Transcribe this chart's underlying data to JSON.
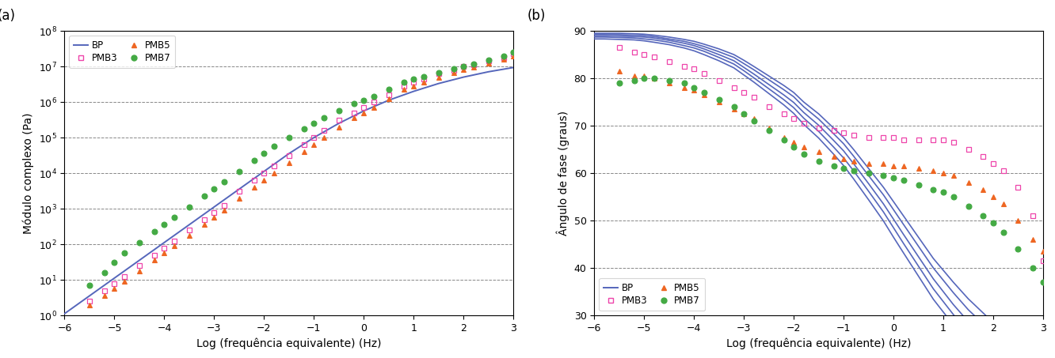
{
  "panel_a": {
    "xlabel": "Log (frequência equivalente) (Hz)",
    "ylabel": "Módulo complexo (Pa)",
    "xlim": [
      -6,
      3
    ],
    "ylim": [
      1.0,
      100000000.0
    ],
    "grid_y_exp": [
      1,
      2,
      3,
      4,
      5,
      6,
      7
    ],
    "bp_line": {
      "color": "#5566bb",
      "x": [
        -6.0,
        -5.5,
        -5.0,
        -4.5,
        -4.0,
        -3.5,
        -3.0,
        -2.5,
        -2.0,
        -1.5,
        -1.0,
        -0.5,
        0.0,
        0.5,
        1.0,
        1.5,
        2.0,
        2.5,
        3.0
      ],
      "y_exp": [
        0.05,
        0.55,
        1.05,
        1.55,
        2.05,
        2.55,
        3.05,
        3.55,
        4.05,
        4.55,
        5.0,
        5.4,
        5.75,
        6.05,
        6.3,
        6.52,
        6.7,
        6.85,
        6.97
      ]
    },
    "pmb3": {
      "color": "#ee44aa",
      "marker": "s",
      "filled": false,
      "x": [
        -5.5,
        -5.2,
        -5.0,
        -4.8,
        -4.5,
        -4.2,
        -4.0,
        -3.8,
        -3.5,
        -3.2,
        -3.0,
        -2.8,
        -2.5,
        -2.2,
        -2.0,
        -1.8,
        -1.5,
        -1.2,
        -1.0,
        -0.8,
        -0.5,
        -0.2,
        0.0,
        0.2,
        0.5,
        0.8,
        1.0,
        1.2,
        1.5,
        1.8,
        2.0,
        2.2,
        2.5,
        2.8,
        3.0
      ],
      "y_exp": [
        0.4,
        0.7,
        0.9,
        1.1,
        1.4,
        1.7,
        1.9,
        2.1,
        2.4,
        2.7,
        2.9,
        3.1,
        3.5,
        3.8,
        4.0,
        4.2,
        4.5,
        4.8,
        5.0,
        5.2,
        5.5,
        5.7,
        5.85,
        6.0,
        6.2,
        6.45,
        6.55,
        6.65,
        6.8,
        6.9,
        7.0,
        7.05,
        7.15,
        7.25,
        7.35
      ]
    },
    "pmb5": {
      "color": "#ee6622",
      "marker": "^",
      "filled": true,
      "x": [
        -5.5,
        -5.2,
        -5.0,
        -4.8,
        -4.5,
        -4.2,
        -4.0,
        -3.8,
        -3.5,
        -3.2,
        -3.0,
        -2.8,
        -2.5,
        -2.2,
        -2.0,
        -1.8,
        -1.5,
        -1.2,
        -1.0,
        -0.8,
        -0.5,
        -0.2,
        0.0,
        0.2,
        0.5,
        0.8,
        1.0,
        1.2,
        1.5,
        1.8,
        2.0,
        2.2,
        2.5,
        2.8,
        3.0
      ],
      "y_exp": [
        0.3,
        0.55,
        0.75,
        0.95,
        1.25,
        1.55,
        1.75,
        1.95,
        2.25,
        2.55,
        2.75,
        2.95,
        3.3,
        3.6,
        3.8,
        4.0,
        4.3,
        4.6,
        4.8,
        5.0,
        5.3,
        5.55,
        5.7,
        5.85,
        6.1,
        6.35,
        6.45,
        6.55,
        6.7,
        6.82,
        6.92,
        6.98,
        7.1,
        7.2,
        7.3
      ]
    },
    "pmb7": {
      "color": "#44aa44",
      "marker": "o",
      "filled": true,
      "x": [
        -5.5,
        -5.2,
        -5.0,
        -4.8,
        -4.5,
        -4.2,
        -4.0,
        -3.8,
        -3.5,
        -3.2,
        -3.0,
        -2.8,
        -2.5,
        -2.2,
        -2.0,
        -1.8,
        -1.5,
        -1.2,
        -1.0,
        -0.8,
        -0.5,
        -0.2,
        0.0,
        0.2,
        0.5,
        0.8,
        1.0,
        1.2,
        1.5,
        1.8,
        2.0,
        2.2,
        2.5,
        2.8,
        3.0
      ],
      "y_exp": [
        0.85,
        1.2,
        1.5,
        1.75,
        2.05,
        2.35,
        2.55,
        2.75,
        3.05,
        3.35,
        3.55,
        3.75,
        4.05,
        4.35,
        4.55,
        4.75,
        5.0,
        5.25,
        5.4,
        5.55,
        5.75,
        5.95,
        6.05,
        6.15,
        6.35,
        6.55,
        6.65,
        6.72,
        6.83,
        6.93,
        7.0,
        7.06,
        7.18,
        7.28,
        7.4
      ]
    }
  },
  "panel_b": {
    "xlabel": "Log (frequência equivalente) (Hz)",
    "ylabel": "Ângulo de fase (graus)",
    "xlim": [
      -6,
      3
    ],
    "ylim": [
      30,
      90
    ],
    "yticks": [
      30,
      40,
      50,
      60,
      70,
      80,
      90
    ],
    "grid_y": [
      40,
      50,
      60,
      70,
      80
    ],
    "bp_lines": {
      "color": "#5566bb",
      "x_sets": [
        [
          -6.0,
          -5.8,
          -5.5,
          -5.2,
          -5.0,
          -4.8,
          -4.5,
          -4.2,
          -4.0,
          -3.8,
          -3.5,
          -3.2,
          -3.0,
          -2.8,
          -2.5,
          -2.2,
          -2.0,
          -1.8,
          -1.5,
          -1.2,
          -1.0,
          -0.8,
          -0.5,
          -0.2,
          0.0,
          0.2,
          0.5,
          0.8,
          1.0,
          1.2,
          1.5,
          1.8,
          2.0,
          2.5,
          3.0
        ],
        [
          -6.0,
          -5.8,
          -5.5,
          -5.2,
          -5.0,
          -4.8,
          -4.5,
          -4.2,
          -4.0,
          -3.8,
          -3.5,
          -3.2,
          -3.0,
          -2.8,
          -2.5,
          -2.2,
          -2.0,
          -1.8,
          -1.5,
          -1.2,
          -1.0,
          -0.8,
          -0.5,
          -0.2,
          0.0,
          0.2,
          0.5,
          0.8,
          1.0,
          1.2,
          1.5,
          1.8,
          2.0,
          2.5,
          3.0
        ],
        [
          -6.0,
          -5.8,
          -5.5,
          -5.2,
          -5.0,
          -4.8,
          -4.5,
          -4.2,
          -4.0,
          -3.8,
          -3.5,
          -3.2,
          -3.0,
          -2.8,
          -2.5,
          -2.2,
          -2.0,
          -1.8,
          -1.5,
          -1.2,
          -1.0,
          -0.8,
          -0.5,
          -0.2,
          0.0,
          0.2,
          0.5,
          0.8,
          1.0,
          1.2,
          1.5,
          1.8,
          2.0,
          2.5,
          3.0
        ],
        [
          -6.0,
          -5.8,
          -5.5,
          -5.2,
          -5.0,
          -4.8,
          -4.5,
          -4.2,
          -4.0,
          -3.8,
          -3.5,
          -3.2,
          -3.0,
          -2.8,
          -2.5,
          -2.2,
          -2.0,
          -1.8,
          -1.5,
          -1.2,
          -1.0,
          -0.8,
          -0.5,
          -0.2,
          0.0,
          0.2,
          0.5,
          0.8,
          1.0,
          1.2,
          1.5,
          1.8,
          2.0,
          2.5,
          3.0
        ],
        [
          -6.0,
          -5.8,
          -5.5,
          -5.2,
          -5.0,
          -4.8,
          -4.5,
          -4.2,
          -4.0,
          -3.8,
          -3.5,
          -3.2,
          -3.0,
          -2.8,
          -2.5,
          -2.2,
          -2.0,
          -1.8,
          -1.5,
          -1.2,
          -1.0,
          -0.8,
          -0.5,
          -0.2,
          0.0,
          0.2,
          0.5,
          0.8,
          1.0,
          1.2,
          1.5,
          1.8
        ]
      ],
      "y_sets": [
        [
          89.5,
          89.5,
          89.5,
          89.4,
          89.3,
          89.1,
          88.7,
          88.2,
          87.8,
          87.2,
          86.2,
          85.0,
          83.8,
          82.5,
          80.5,
          78.5,
          77.0,
          75.0,
          72.5,
          69.5,
          67.5,
          65.0,
          61.0,
          57.0,
          54.0,
          51.0,
          46.5,
          42.0,
          39.5,
          37.0,
          33.5,
          30.5,
          28.5,
          24.5,
          20.5
        ],
        [
          89.3,
          89.3,
          89.2,
          89.1,
          89.0,
          88.8,
          88.3,
          87.8,
          87.3,
          86.7,
          85.6,
          84.4,
          83.1,
          81.8,
          79.7,
          77.6,
          76.1,
          74.0,
          71.4,
          68.3,
          66.2,
          63.6,
          59.5,
          55.4,
          52.3,
          49.2,
          44.6,
          40.0,
          37.4,
          34.8,
          31.2,
          28.2,
          26.1,
          22.0,
          18.0
        ],
        [
          89.0,
          89.0,
          88.9,
          88.8,
          88.7,
          88.5,
          88.0,
          87.4,
          86.9,
          86.2,
          85.0,
          83.7,
          82.3,
          80.9,
          78.7,
          76.5,
          74.9,
          72.8,
          70.1,
          66.9,
          64.7,
          62.0,
          57.8,
          53.5,
          50.3,
          47.1,
          42.4,
          37.7,
          35.0,
          32.3,
          28.7,
          25.6,
          23.5,
          19.3,
          15.2
        ],
        [
          88.7,
          88.7,
          88.6,
          88.5,
          88.3,
          88.1,
          87.6,
          86.9,
          86.4,
          85.7,
          84.4,
          83.0,
          81.6,
          80.1,
          77.8,
          75.5,
          73.8,
          71.6,
          68.8,
          65.5,
          63.2,
          60.5,
          56.2,
          51.8,
          48.5,
          45.2,
          40.4,
          35.6,
          32.9,
          30.2,
          26.5,
          23.3,
          21.2,
          17.0,
          12.8
        ],
        [
          88.3,
          88.3,
          88.2,
          88.1,
          87.9,
          87.6,
          87.1,
          86.4,
          85.8,
          85.0,
          83.7,
          82.2,
          80.7,
          79.2,
          76.8,
          74.4,
          72.6,
          70.3,
          67.4,
          64.0,
          61.6,
          58.8,
          54.4,
          49.9,
          46.5,
          43.2,
          38.3,
          33.4,
          30.7,
          28.0,
          24.3,
          21.0
        ]
      ]
    },
    "pmb3": {
      "color": "#ee44aa",
      "marker": "s",
      "filled": false,
      "x": [
        -5.5,
        -5.2,
        -5.0,
        -4.8,
        -4.5,
        -4.2,
        -4.0,
        -3.8,
        -3.5,
        -3.2,
        -3.0,
        -2.8,
        -2.5,
        -2.2,
        -2.0,
        -1.8,
        -1.5,
        -1.2,
        -1.0,
        -0.8,
        -0.5,
        -0.2,
        0.0,
        0.2,
        0.5,
        0.8,
        1.0,
        1.2,
        1.5,
        1.8,
        2.0,
        2.2,
        2.5,
        2.8,
        3.0
      ],
      "y": [
        86.5,
        85.5,
        85.0,
        84.5,
        83.5,
        82.5,
        82.0,
        81.0,
        79.5,
        78.0,
        77.0,
        76.0,
        74.0,
        72.5,
        71.5,
        70.5,
        69.5,
        69.0,
        68.5,
        68.0,
        67.5,
        67.5,
        67.5,
        67.0,
        67.0,
        67.0,
        67.0,
        66.5,
        65.0,
        63.5,
        62.0,
        60.5,
        57.0,
        51.0,
        41.5
      ]
    },
    "pmb5": {
      "color": "#ee6622",
      "marker": "^",
      "filled": true,
      "x": [
        -5.5,
        -5.2,
        -5.0,
        -4.8,
        -4.5,
        -4.2,
        -4.0,
        -3.8,
        -3.5,
        -3.2,
        -3.0,
        -2.8,
        -2.5,
        -2.2,
        -2.0,
        -1.8,
        -1.5,
        -1.2,
        -1.0,
        -0.8,
        -0.5,
        -0.2,
        0.0,
        0.2,
        0.5,
        0.8,
        1.0,
        1.2,
        1.5,
        1.8,
        2.0,
        2.2,
        2.5,
        2.8,
        3.0
      ],
      "y": [
        81.5,
        80.5,
        80.5,
        80.0,
        79.0,
        78.0,
        77.5,
        76.5,
        75.0,
        73.5,
        72.5,
        71.5,
        69.5,
        67.5,
        66.5,
        65.5,
        64.5,
        63.5,
        63.0,
        62.5,
        62.0,
        62.0,
        61.5,
        61.5,
        61.0,
        60.5,
        60.0,
        59.5,
        58.0,
        56.5,
        55.0,
        53.5,
        50.0,
        46.0,
        43.5
      ]
    },
    "pmb7": {
      "color": "#44aa44",
      "marker": "o",
      "filled": true,
      "x": [
        -5.5,
        -5.2,
        -5.0,
        -4.8,
        -4.5,
        -4.2,
        -4.0,
        -3.8,
        -3.5,
        -3.2,
        -3.0,
        -2.8,
        -2.5,
        -2.2,
        -2.0,
        -1.8,
        -1.5,
        -1.2,
        -1.0,
        -0.8,
        -0.5,
        -0.2,
        0.0,
        0.2,
        0.5,
        0.8,
        1.0,
        1.2,
        1.5,
        1.8,
        2.0,
        2.2,
        2.5,
        2.8,
        3.0
      ],
      "y": [
        79.0,
        79.5,
        80.0,
        80.0,
        79.5,
        79.0,
        78.0,
        77.0,
        75.5,
        74.0,
        72.5,
        71.0,
        69.0,
        67.0,
        65.5,
        64.0,
        62.5,
        61.5,
        61.0,
        60.5,
        60.0,
        59.5,
        59.0,
        58.5,
        57.5,
        56.5,
        56.0,
        55.0,
        53.0,
        51.0,
        49.5,
        47.5,
        44.0,
        40.0,
        37.0
      ]
    }
  },
  "bp_color": "#5566bb",
  "pmb3_color": "#ee44aa",
  "pmb5_color": "#ee6622",
  "pmb7_color": "#44aa44",
  "bg_color": "#ffffff"
}
